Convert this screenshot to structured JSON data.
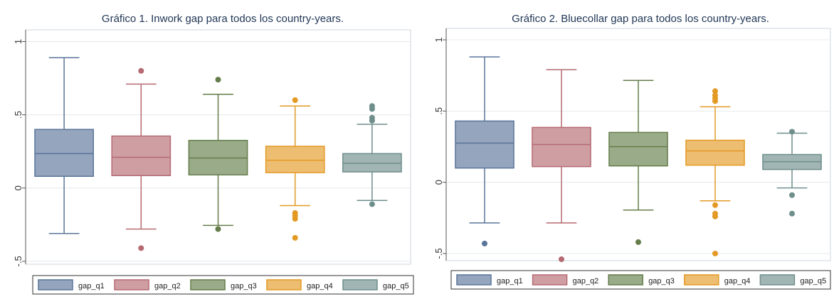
{
  "chart_data": [
    {
      "type": "box",
      "title": "Gráfico 1. Inwork gap para todos los country-years.",
      "xlabel": "",
      "ylabel": "",
      "ylim": [
        -0.52,
        1.08
      ],
      "y_ticks": [
        -0.5,
        0,
        0.5,
        1
      ],
      "y_tick_labels": [
        "-.5",
        "0",
        ".5",
        "1"
      ],
      "grid": true,
      "legend_position": "bottom",
      "series": [
        {
          "name": "gap_q1",
          "color": "#5a759a",
          "whisker_low": -0.31,
          "q1": 0.08,
          "median": 0.235,
          "q3": 0.4,
          "whisker_high": 0.89,
          "outliers": []
        },
        {
          "name": "gap_q2",
          "color": "#b56a72",
          "whisker_low": -0.28,
          "q1": 0.085,
          "median": 0.21,
          "q3": 0.355,
          "whisker_high": 0.71,
          "outliers": [
            0.8,
            -0.41
          ]
        },
        {
          "name": "gap_q3",
          "color": "#647d4a",
          "whisker_low": -0.255,
          "q1": 0.09,
          "median": 0.205,
          "q3": 0.325,
          "whisker_high": 0.64,
          "outliers": [
            0.74,
            -0.28
          ]
        },
        {
          "name": "gap_q4",
          "color": "#e39a25",
          "whisker_low": -0.12,
          "q1": 0.105,
          "median": 0.19,
          "q3": 0.285,
          "whisker_high": 0.56,
          "outliers": [
            0.6,
            -0.17,
            -0.19,
            -0.21,
            -0.34
          ]
        },
        {
          "name": "gap_q5",
          "color": "#6e8e8c",
          "whisker_low": -0.085,
          "q1": 0.11,
          "median": 0.17,
          "q3": 0.235,
          "whisker_high": 0.435,
          "outliers": [
            0.46,
            0.48,
            0.54,
            0.56,
            -0.11
          ]
        }
      ]
    },
    {
      "type": "box",
      "title": "Gráfico 2. Bluecollar gap para todos los country-years.",
      "xlabel": "",
      "ylabel": "",
      "ylim": [
        -0.55,
        1.08
      ],
      "y_ticks": [
        -0.5,
        0,
        0.5,
        1
      ],
      "y_tick_labels": [
        "-.5",
        "0",
        ".5",
        "1"
      ],
      "grid": true,
      "legend_position": "bottom",
      "series": [
        {
          "name": "gap_q1",
          "color": "#5a759a",
          "whisker_low": -0.285,
          "q1": 0.1,
          "median": 0.275,
          "q3": 0.43,
          "whisker_high": 0.88,
          "outliers": [
            -0.43
          ]
        },
        {
          "name": "gap_q2",
          "color": "#b56a72",
          "whisker_low": -0.285,
          "q1": 0.11,
          "median": 0.265,
          "q3": 0.385,
          "whisker_high": 0.79,
          "outliers": [
            -0.54
          ]
        },
        {
          "name": "gap_q3",
          "color": "#647d4a",
          "whisker_low": -0.195,
          "q1": 0.115,
          "median": 0.25,
          "q3": 0.35,
          "whisker_high": 0.715,
          "outliers": [
            -0.42
          ]
        },
        {
          "name": "gap_q4",
          "color": "#e39a25",
          "whisker_low": -0.13,
          "q1": 0.12,
          "median": 0.22,
          "q3": 0.295,
          "whisker_high": 0.53,
          "outliers": [
            0.57,
            0.59,
            0.61,
            0.64,
            -0.16,
            -0.22,
            -0.24,
            -0.5
          ]
        },
        {
          "name": "gap_q5",
          "color": "#6e8e8c",
          "whisker_low": -0.04,
          "q1": 0.09,
          "median": 0.145,
          "q3": 0.195,
          "whisker_high": 0.345,
          "outliers": [
            0.355,
            -0.09,
            -0.22
          ]
        }
      ]
    }
  ]
}
